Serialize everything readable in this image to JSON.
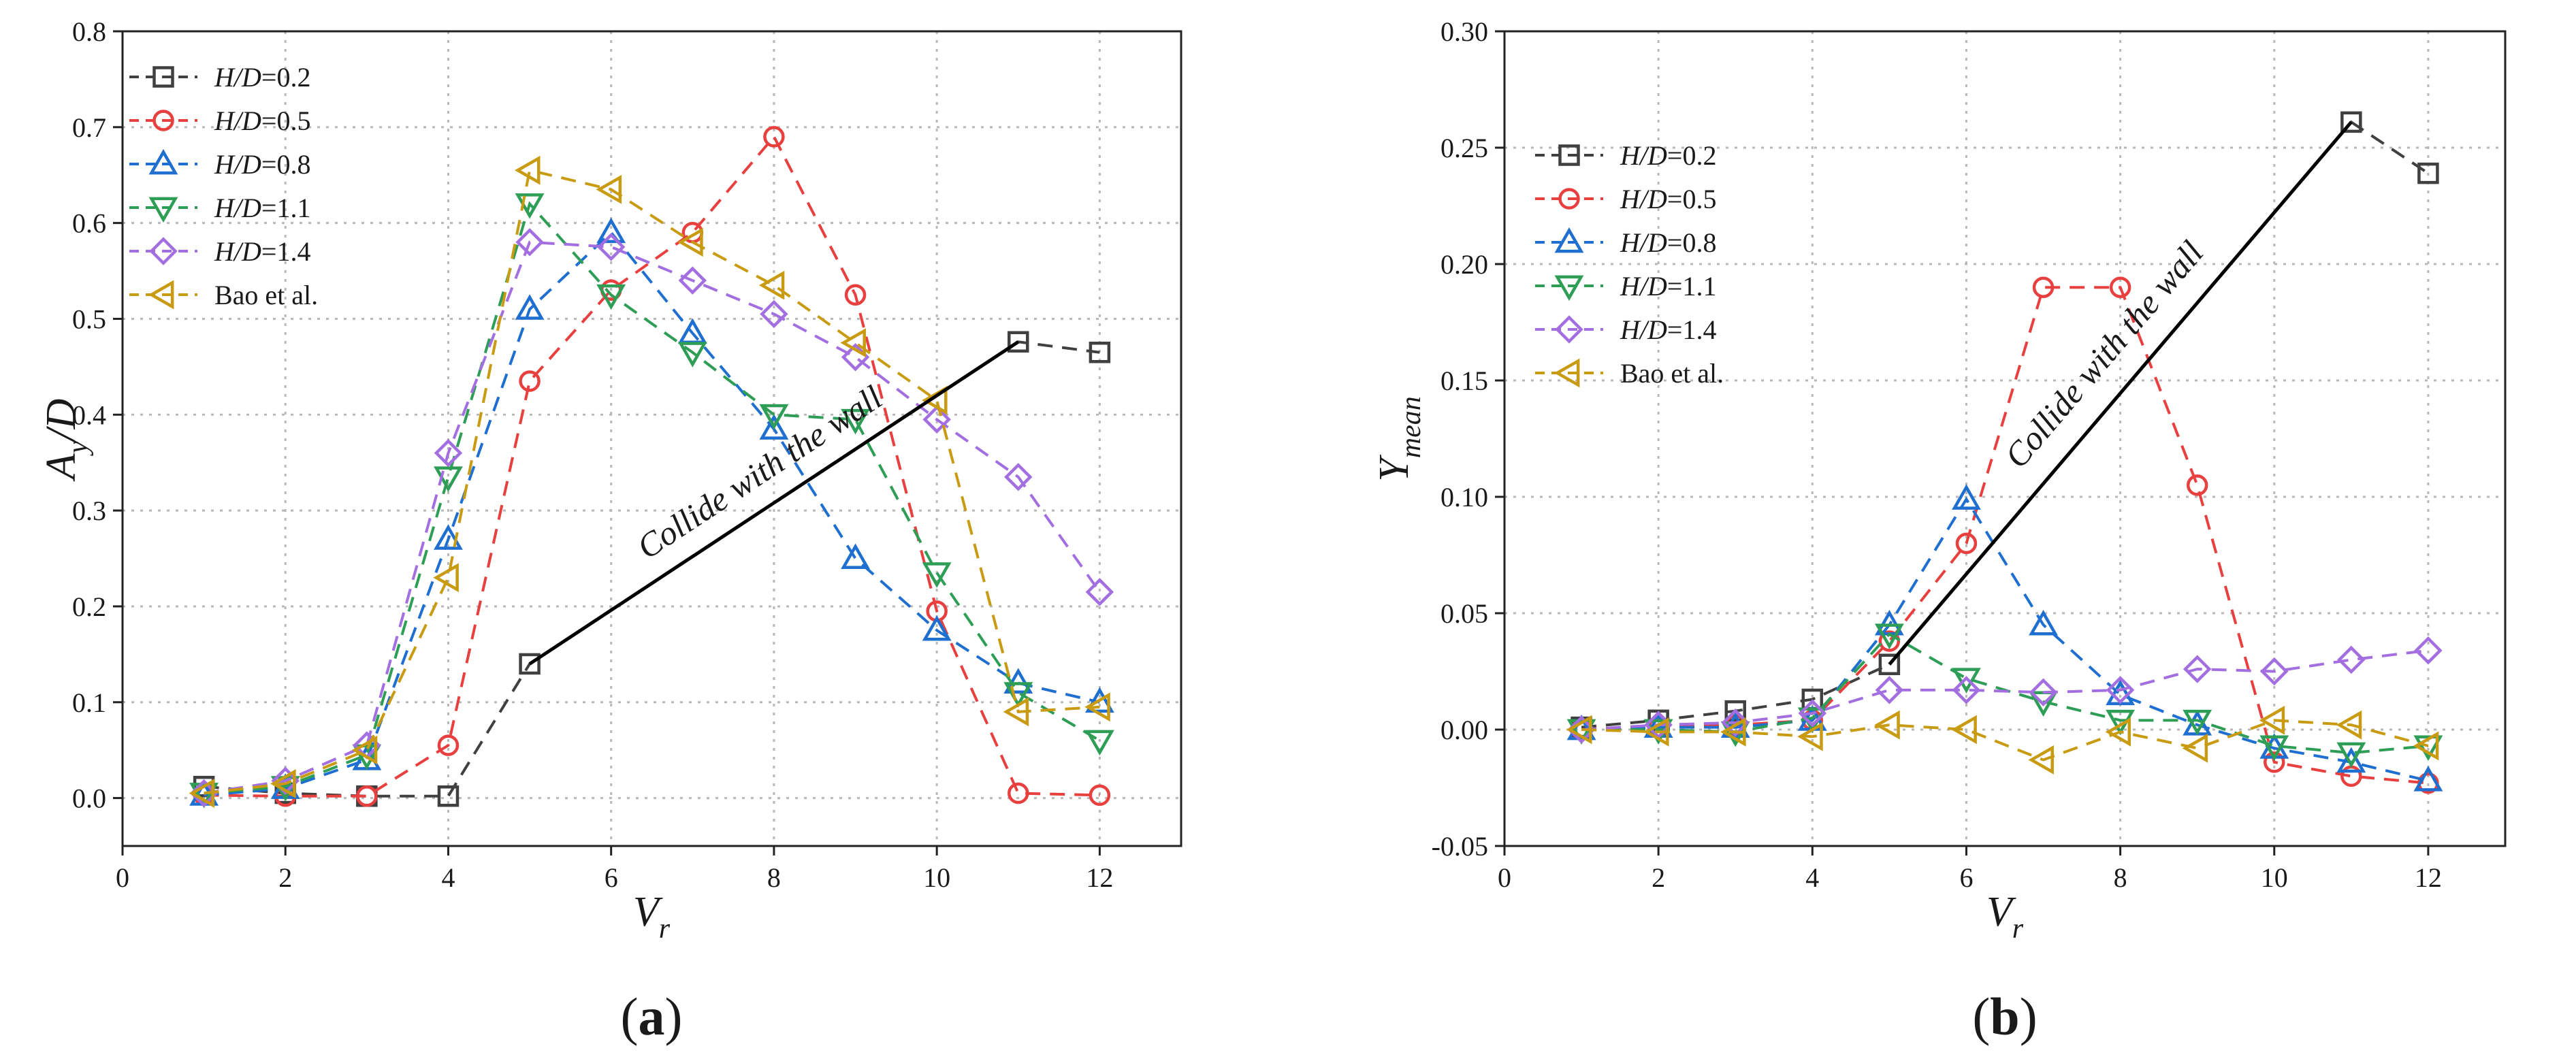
{
  "chart_data": [
    {
      "type": "line",
      "panel_label": "a",
      "title": "",
      "xlabel": "Vr",
      "xlabel_main": "V",
      "xlabel_sub": "r",
      "ylabel": "Ay/D",
      "ylabel_main": "A",
      "ylabel_sub": "y",
      "ylabel_suffix": "/D",
      "xlim": [
        0,
        13
      ],
      "ylim": [
        -0.05,
        0.8
      ],
      "xticks": [
        0,
        2,
        4,
        6,
        8,
        10,
        12
      ],
      "yticks": [
        0.0,
        0.1,
        0.2,
        0.3,
        0.4,
        0.5,
        0.6,
        0.7,
        0.8
      ],
      "xtick_labels": [
        "0",
        "2",
        "4",
        "6",
        "8",
        "10",
        "12"
      ],
      "ytick_labels": [
        "0.0",
        "0.1",
        "0.2",
        "0.3",
        "0.4",
        "0.5",
        "0.6",
        "0.7",
        "0.8"
      ],
      "grid": true,
      "legend_position": "top-left",
      "x": [
        1,
        2,
        3,
        4,
        5,
        6,
        7,
        8,
        9,
        10,
        11,
        12
      ],
      "series": [
        {
          "name": "H/D=0.2",
          "label_italic": "H/D",
          "label_rest": "=0.2",
          "color": "#404040",
          "marker": "square",
          "x": [
            1,
            2,
            3,
            4,
            5,
            11,
            12
          ],
          "values": [
            0.012,
            0.005,
            0.002,
            0.002,
            0.14,
            0.476,
            0.465
          ]
        },
        {
          "name": "H/D=0.5",
          "label_italic": "H/D",
          "label_rest": "=0.5",
          "color": "#e8403f",
          "marker": "circle",
          "x": [
            1,
            2,
            3,
            4,
            5,
            6,
            7,
            8,
            9,
            10,
            11,
            12
          ],
          "values": [
            0.003,
            0.002,
            0.002,
            0.055,
            0.435,
            0.53,
            0.59,
            0.69,
            0.525,
            0.195,
            0.005,
            0.003
          ]
        },
        {
          "name": "H/D=0.8",
          "label_italic": "H/D",
          "label_rest": "=0.8",
          "color": "#1f6fd1",
          "marker": "triangle-up",
          "x": [
            1,
            2,
            3,
            4,
            5,
            6,
            7,
            8,
            9,
            10,
            11,
            12
          ],
          "values": [
            0.003,
            0.01,
            0.04,
            0.27,
            0.51,
            0.59,
            0.485,
            0.385,
            0.25,
            0.175,
            0.12,
            0.1
          ]
        },
        {
          "name": "H/D=1.1",
          "label_italic": "H/D",
          "label_rest": "=1.1",
          "color": "#2e9e56",
          "marker": "triangle-down",
          "x": [
            1,
            2,
            3,
            4,
            5,
            6,
            7,
            8,
            9,
            10,
            11,
            12
          ],
          "values": [
            0.005,
            0.012,
            0.045,
            0.335,
            0.62,
            0.525,
            0.465,
            0.4,
            0.395,
            0.235,
            0.11,
            0.06
          ]
        },
        {
          "name": "H/D=1.4",
          "label_italic": "H/D",
          "label_rest": "=1.4",
          "color": "#a36fe0",
          "marker": "diamond",
          "x": [
            1,
            2,
            3,
            4,
            5,
            6,
            7,
            8,
            9,
            10,
            11,
            12
          ],
          "values": [
            0.005,
            0.018,
            0.055,
            0.36,
            0.58,
            0.575,
            0.54,
            0.505,
            0.46,
            0.395,
            0.335,
            0.215
          ]
        },
        {
          "name": "Bao et al.",
          "label_italic": "",
          "label_rest": "Bao et al.",
          "color": "#c89b12",
          "marker": "triangle-left",
          "x": [
            1,
            2,
            3,
            4,
            5,
            6,
            7,
            8,
            9,
            10,
            11,
            12
          ],
          "values": [
            0.005,
            0.015,
            0.05,
            0.23,
            0.655,
            0.635,
            0.58,
            0.535,
            0.475,
            0.415,
            0.09,
            0.095
          ]
        }
      ],
      "annotation": {
        "text": "Collide with the wall",
        "from": [
          5,
          0.14
        ],
        "to": [
          11,
          0.476
        ],
        "text_at": [
          7.9,
          0.33
        ]
      }
    },
    {
      "type": "line",
      "panel_label": "b",
      "title": "",
      "xlabel": "Vr",
      "xlabel_main": "V",
      "xlabel_sub": "r",
      "ylabel": "Ymean",
      "ylabel_main": "Y",
      "ylabel_sub": "mean",
      "ylabel_suffix": "",
      "xlim": [
        0,
        13
      ],
      "ylim": [
        -0.05,
        0.3
      ],
      "xticks": [
        0,
        2,
        4,
        6,
        8,
        10,
        12
      ],
      "yticks": [
        -0.05,
        0.0,
        0.05,
        0.1,
        0.15,
        0.2,
        0.25,
        0.3
      ],
      "xtick_labels": [
        "0",
        "2",
        "4",
        "6",
        "8",
        "10",
        "12"
      ],
      "ytick_labels": [
        "-0.05",
        "0.00",
        "0.05",
        "0.10",
        "0.15",
        "0.20",
        "0.25",
        "0.30"
      ],
      "grid": true,
      "legend_position": "top-left",
      "x": [
        1,
        2,
        3,
        4,
        5,
        6,
        7,
        8,
        9,
        10,
        11,
        12
      ],
      "series": [
        {
          "name": "H/D=0.2",
          "label_italic": "H/D",
          "label_rest": "=0.2",
          "color": "#404040",
          "marker": "square",
          "x": [
            1,
            2,
            3,
            4,
            5,
            11,
            12
          ],
          "values": [
            0.001,
            0.004,
            0.008,
            0.013,
            0.028,
            0.261,
            0.239
          ]
        },
        {
          "name": "H/D=0.5",
          "label_italic": "H/D",
          "label_rest": "=0.5",
          "color": "#e8403f",
          "marker": "circle",
          "x": [
            1,
            2,
            3,
            4,
            5,
            6,
            7,
            8,
            9,
            10,
            11,
            12
          ],
          "values": [
            0.0,
            0.001,
            0.002,
            0.004,
            0.038,
            0.08,
            0.19,
            0.19,
            0.105,
            -0.014,
            -0.02,
            -0.023
          ]
        },
        {
          "name": "H/D=0.8",
          "label_italic": "H/D",
          "label_rest": "=0.8",
          "color": "#1f6fd1",
          "marker": "triangle-up",
          "x": [
            1,
            2,
            3,
            4,
            5,
            6,
            7,
            8,
            9,
            10,
            11,
            12
          ],
          "values": [
            0.0,
            0.001,
            0.001,
            0.004,
            0.045,
            0.099,
            0.045,
            0.015,
            0.002,
            -0.008,
            -0.014,
            -0.022
          ]
        },
        {
          "name": "H/D=1.1",
          "label_italic": "H/D",
          "label_rest": "=1.1",
          "color": "#2e9e56",
          "marker": "triangle-down",
          "x": [
            1,
            2,
            3,
            4,
            5,
            6,
            7,
            8,
            9,
            10,
            11,
            12
          ],
          "values": [
            0.0,
            0.0,
            -0.001,
            0.005,
            0.041,
            0.022,
            0.012,
            0.004,
            0.004,
            -0.007,
            -0.01,
            -0.007
          ]
        },
        {
          "name": "H/D=1.4",
          "label_italic": "H/D",
          "label_rest": "=1.4",
          "color": "#a36fe0",
          "marker": "diamond",
          "x": [
            1,
            2,
            3,
            4,
            5,
            6,
            7,
            8,
            9,
            10,
            11,
            12
          ],
          "values": [
            0.0,
            0.002,
            0.003,
            0.007,
            0.017,
            0.017,
            0.016,
            0.017,
            0.026,
            0.025,
            0.03,
            0.034
          ]
        },
        {
          "name": "Bao et al.",
          "label_italic": "",
          "label_rest": "Bao et al.",
          "color": "#c89b12",
          "marker": "triangle-left",
          "x": [
            1,
            2,
            3,
            4,
            5,
            6,
            7,
            8,
            9,
            10,
            11,
            12
          ],
          "values": [
            0.0,
            -0.001,
            -0.001,
            -0.003,
            0.002,
            0.0,
            -0.013,
            -0.001,
            -0.008,
            0.004,
            0.002,
            -0.007
          ]
        }
      ],
      "annotation": {
        "text": "Collide with the wall",
        "from": [
          5,
          0.028
        ],
        "to": [
          11,
          0.261
        ],
        "text_at": [
          7.9,
          0.158
        ]
      }
    }
  ]
}
